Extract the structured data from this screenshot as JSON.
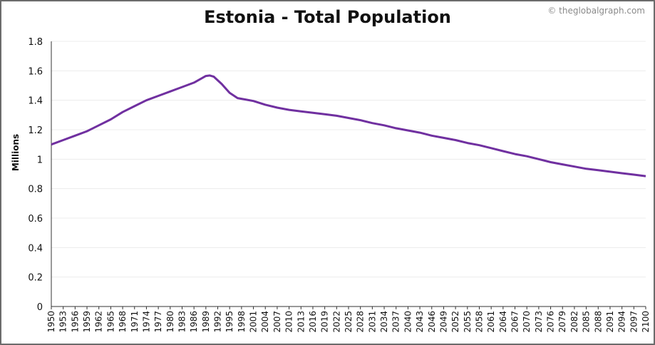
{
  "watermark": "© theglobalgraph.com",
  "chart_data": {
    "type": "line",
    "title": "Estonia - Total Population",
    "xlabel": "",
    "ylabel": "Millions",
    "ylim": [
      0,
      1.8
    ],
    "yticks": [
      "0",
      "0.2",
      "0.4",
      "0.6",
      "0.8",
      "1",
      "1.2",
      "1.4",
      "1.6",
      "1.8"
    ],
    "xlim": [
      1950,
      2100
    ],
    "xticks": [
      1950,
      1953,
      1956,
      1959,
      1962,
      1965,
      1968,
      1971,
      1974,
      1977,
      1980,
      1983,
      1986,
      1989,
      1992,
      1995,
      1998,
      2001,
      2004,
      2007,
      2010,
      2013,
      2016,
      2019,
      2022,
      2025,
      2028,
      2031,
      2034,
      2037,
      2040,
      2043,
      2046,
      2049,
      2052,
      2055,
      2058,
      2061,
      2064,
      2067,
      2070,
      2073,
      2076,
      2079,
      2082,
      2085,
      2088,
      2091,
      2094,
      2097,
      2100
    ],
    "grid": true,
    "line_color": "#7030a0",
    "series": [
      {
        "x": [
          1950,
          1953,
          1956,
          1959,
          1962,
          1965,
          1968,
          1971,
          1974,
          1977,
          1980,
          1983,
          1986,
          1988,
          1989,
          1990,
          1991,
          1993,
          1995,
          1997,
          1999,
          2001,
          2004,
          2007,
          2010,
          2013,
          2016,
          2019,
          2022,
          2025,
          2028,
          2031,
          2034,
          2037,
          2040,
          2043,
          2046,
          2049,
          2052,
          2055,
          2058,
          2061,
          2064,
          2067,
          2070,
          2073,
          2076,
          2079,
          2082,
          2085,
          2088,
          2091,
          2094,
          2097,
          2100
        ],
        "values": [
          1.1,
          1.13,
          1.16,
          1.19,
          1.23,
          1.27,
          1.32,
          1.36,
          1.4,
          1.43,
          1.46,
          1.49,
          1.52,
          1.55,
          1.565,
          1.568,
          1.56,
          1.51,
          1.45,
          1.415,
          1.405,
          1.395,
          1.37,
          1.35,
          1.335,
          1.325,
          1.315,
          1.305,
          1.295,
          1.28,
          1.265,
          1.245,
          1.23,
          1.21,
          1.195,
          1.18,
          1.16,
          1.145,
          1.13,
          1.11,
          1.095,
          1.075,
          1.055,
          1.035,
          1.02,
          1.0,
          0.98,
          0.965,
          0.95,
          0.935,
          0.925,
          0.915,
          0.905,
          0.895,
          0.885
        ]
      }
    ]
  }
}
